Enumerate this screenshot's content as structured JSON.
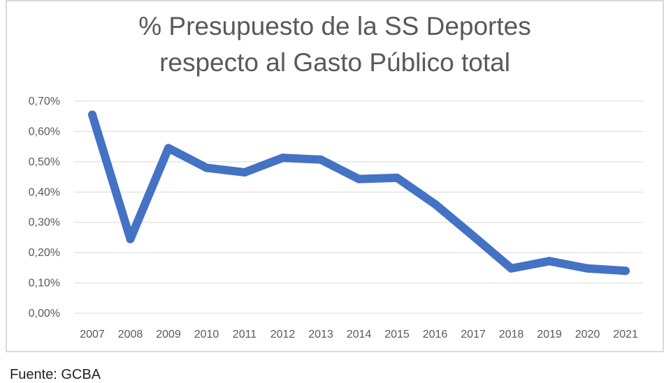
{
  "chart_data": {
    "type": "line",
    "title_lines": [
      "% Presupuesto de la SS Deportes",
      "respecto al Gasto Público total"
    ],
    "categories": [
      "2007",
      "2008",
      "2009",
      "2010",
      "2011",
      "2012",
      "2013",
      "2014",
      "2015",
      "2016",
      "2017",
      "2018",
      "2019",
      "2020",
      "2021"
    ],
    "values": [
      0.655,
      0.245,
      0.545,
      0.48,
      0.465,
      0.513,
      0.507,
      0.443,
      0.447,
      0.36,
      0.255,
      0.148,
      0.172,
      0.148,
      0.14
    ],
    "ylim": [
      0,
      0.7
    ],
    "yticks": [
      "0,00%",
      "0,10%",
      "0,20%",
      "0,30%",
      "0,40%",
      "0,50%",
      "0,60%",
      "0,70%"
    ],
    "grid": true,
    "line_color": "#4472c4",
    "grid_color": "#d9d9d9"
  },
  "source": "Fuente: GCBA"
}
